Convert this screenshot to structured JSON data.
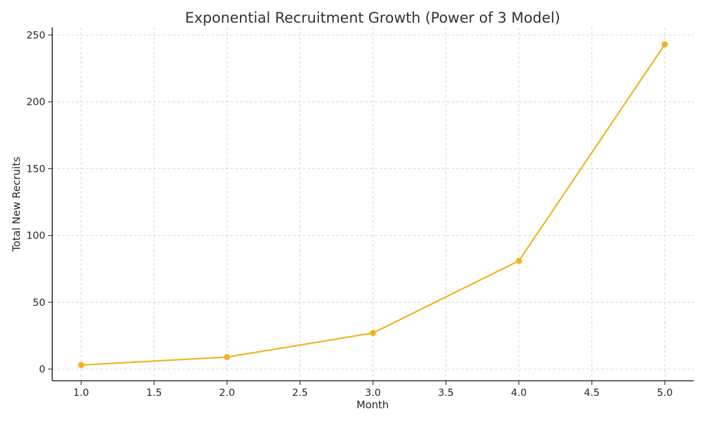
{
  "chart_data": {
    "type": "line",
    "title": "Exponential Recruitment Growth (Power of 3 Model)",
    "xlabel": "Month",
    "ylabel": "Total New Recruits",
    "x": [
      1,
      2,
      3,
      4,
      5
    ],
    "series": [
      {
        "name": "Total New Recruits",
        "values": [
          3,
          9,
          27,
          81,
          243
        ],
        "color": "#f0b323",
        "marker": "circle"
      }
    ],
    "xlim": [
      0.8,
      5.2
    ],
    "ylim": [
      -9,
      256
    ],
    "x_ticks": [
      "1.0",
      "1.5",
      "2.0",
      "2.5",
      "3.0",
      "3.5",
      "4.0",
      "4.5",
      "5.0"
    ],
    "y_ticks": [
      "0",
      "50",
      "100",
      "150",
      "200",
      "250"
    ],
    "grid": true,
    "legend": null
  }
}
